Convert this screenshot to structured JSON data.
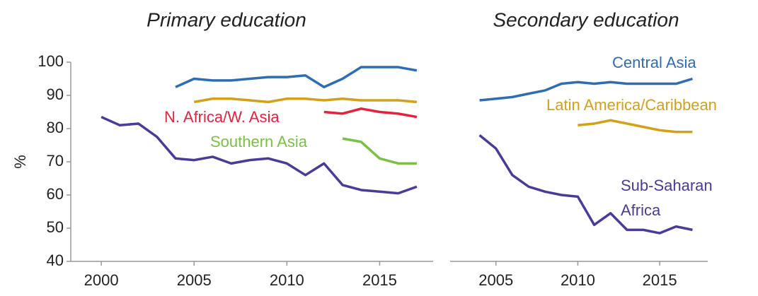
{
  "chart_data": [
    {
      "type": "line",
      "title": "Primary education",
      "ylabel": "%",
      "xlim": [
        1999.5,
        2017.5
      ],
      "xticks": [
        2000,
        2005,
        2010,
        2015
      ],
      "ylim": [
        40,
        100
      ],
      "yticks": [
        40,
        50,
        60,
        70,
        80,
        90,
        100
      ],
      "series": [
        {
          "name": "N. Africa/W. Asia",
          "color": "#e8213a",
          "x": [
            2012,
            2013,
            2014,
            2015,
            2016,
            2017
          ],
          "values": [
            85,
            84.5,
            86,
            85,
            84.5,
            83.5
          ]
        },
        {
          "name": "Southern Asia",
          "color": "#7ac143",
          "x": [
            2013,
            2014,
            2015,
            2016,
            2017
          ],
          "values": [
            77,
            76,
            71,
            69.5,
            69.5
          ]
        },
        {
          "color": "#2e6db4",
          "x": [
            2004,
            2005,
            2006,
            2007,
            2008,
            2009,
            2010,
            2011,
            2012,
            2013,
            2014,
            2015,
            2016,
            2017
          ],
          "values": [
            92.5,
            95,
            94.5,
            94.5,
            95,
            95.5,
            95.5,
            96,
            92.5,
            95,
            98.5,
            98.5,
            98.5,
            97.5
          ]
        },
        {
          "color": "#d4a017",
          "x": [
            2005,
            2006,
            2007,
            2008,
            2009,
            2010,
            2011,
            2012,
            2013,
            2014,
            2015,
            2016,
            2017
          ],
          "values": [
            88,
            89,
            89,
            88.5,
            88,
            89,
            89,
            88.5,
            89,
            88.5,
            88.5,
            88.5,
            88
          ]
        },
        {
          "color": "#4b3a9a",
          "x": [
            2000,
            2001,
            2002,
            2003,
            2004,
            2005,
            2006,
            2007,
            2008,
            2009,
            2010,
            2011,
            2012,
            2013,
            2014,
            2015,
            2016,
            2017
          ],
          "values": [
            83.5,
            81,
            81.5,
            77.5,
            71,
            70.5,
            71.5,
            69.5,
            70.5,
            71,
            69.5,
            66,
            69.5,
            63,
            61.5,
            61,
            60.5,
            62.5
          ]
        }
      ]
    },
    {
      "type": "line",
      "title": "Secondary education",
      "xlim": [
        2003.5,
        2017.5
      ],
      "xticks": [
        2005,
        2010,
        2015
      ],
      "ylim": [
        40,
        100
      ],
      "series": [
        {
          "name": "Central Asia",
          "color": "#2e6db4",
          "x": [
            2004,
            2005,
            2006,
            2007,
            2008,
            2009,
            2010,
            2011,
            2012,
            2013,
            2014,
            2015,
            2016,
            2017
          ],
          "values": [
            88.5,
            89,
            89.5,
            90.5,
            91.5,
            93.5,
            94,
            93.5,
            94,
            93.5,
            93.5,
            93.5,
            93.5,
            95
          ]
        },
        {
          "name": "Latin America/Caribbean",
          "color": "#d4a017",
          "x": [
            2010,
            2011,
            2012,
            2013,
            2014,
            2015,
            2016,
            2017
          ],
          "values": [
            81,
            81.5,
            82.5,
            81.5,
            80.5,
            79.5,
            79,
            79
          ]
        },
        {
          "name": "Sub-Saharan Africa",
          "color": "#4b3a9a",
          "x": [
            2004,
            2005,
            2006,
            2007,
            2008,
            2009,
            2010,
            2011,
            2012,
            2013,
            2014,
            2015,
            2016,
            2017
          ],
          "values": [
            78,
            74,
            66,
            62.5,
            61,
            60,
            59.5,
            51,
            54.5,
            49.5,
            49.5,
            48.5,
            50.5,
            49.5
          ]
        }
      ]
    }
  ]
}
